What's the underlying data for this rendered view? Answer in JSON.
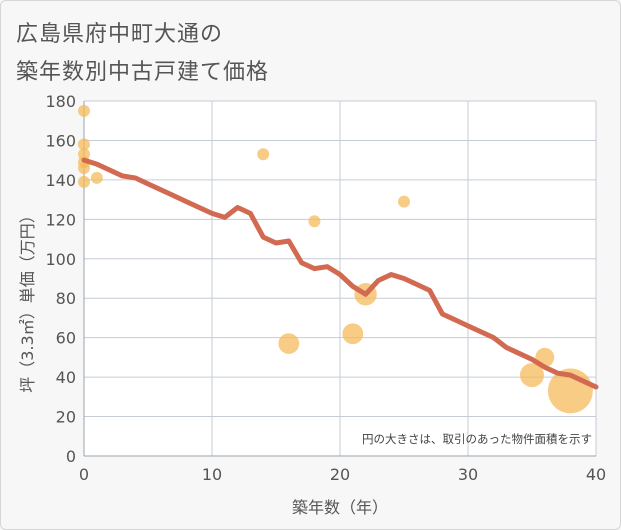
{
  "chart_data": {
    "type": "scatter",
    "title_line1": "広島県府中町大通の",
    "title_line2": "築年数別中古戸建て価格",
    "xlabel": "築年数（年）",
    "ylabel": "坪（3.3㎡）単価（万円）",
    "xlim": [
      0,
      40
    ],
    "ylim": [
      0,
      180
    ],
    "x_ticks": [
      0,
      10,
      20,
      30,
      40
    ],
    "y_ticks": [
      0,
      20,
      40,
      60,
      80,
      100,
      120,
      140,
      160,
      180
    ],
    "note": "円の大きさは、取引のあった物件面積を示す",
    "colors": {
      "bubble": "#f5b955",
      "line": "#d26a52",
      "grid": "#c5ccd6"
    },
    "points": [
      {
        "x": 0,
        "y": 175,
        "size": 1
      },
      {
        "x": 0,
        "y": 158,
        "size": 1
      },
      {
        "x": 0,
        "y": 153,
        "size": 1
      },
      {
        "x": 0,
        "y": 149,
        "size": 1
      },
      {
        "x": 0,
        "y": 146,
        "size": 1
      },
      {
        "x": 0,
        "y": 139,
        "size": 1
      },
      {
        "x": 1,
        "y": 141,
        "size": 1
      },
      {
        "x": 14,
        "y": 153,
        "size": 1
      },
      {
        "x": 18,
        "y": 119,
        "size": 1
      },
      {
        "x": 25,
        "y": 129,
        "size": 1
      },
      {
        "x": 16,
        "y": 57,
        "size": 3
      },
      {
        "x": 21,
        "y": 62,
        "size": 3
      },
      {
        "x": 22,
        "y": 82,
        "size": 3.5
      },
      {
        "x": 35,
        "y": 41,
        "size": 4
      },
      {
        "x": 36,
        "y": 50,
        "size": 2.5
      },
      {
        "x": 38,
        "y": 33,
        "size": 14
      }
    ],
    "trend": {
      "x": [
        0,
        1,
        2,
        3,
        4,
        5,
        6,
        7,
        8,
        9,
        10,
        11,
        12,
        13,
        14,
        15,
        16,
        17,
        18,
        19,
        20,
        21,
        22,
        23,
        24,
        25,
        26,
        27,
        28,
        29,
        30,
        31,
        32,
        33,
        34,
        35,
        36,
        37,
        38,
        39,
        40
      ],
      "y": [
        150,
        148,
        145,
        142,
        141,
        138,
        135,
        132,
        129,
        126,
        123,
        121,
        126,
        123,
        111,
        108,
        109,
        98,
        95,
        96,
        92,
        86,
        82,
        89,
        92,
        90,
        87,
        84,
        72,
        69,
        66,
        63,
        60,
        55,
        52,
        49,
        45,
        42,
        41,
        38,
        35
      ]
    }
  }
}
